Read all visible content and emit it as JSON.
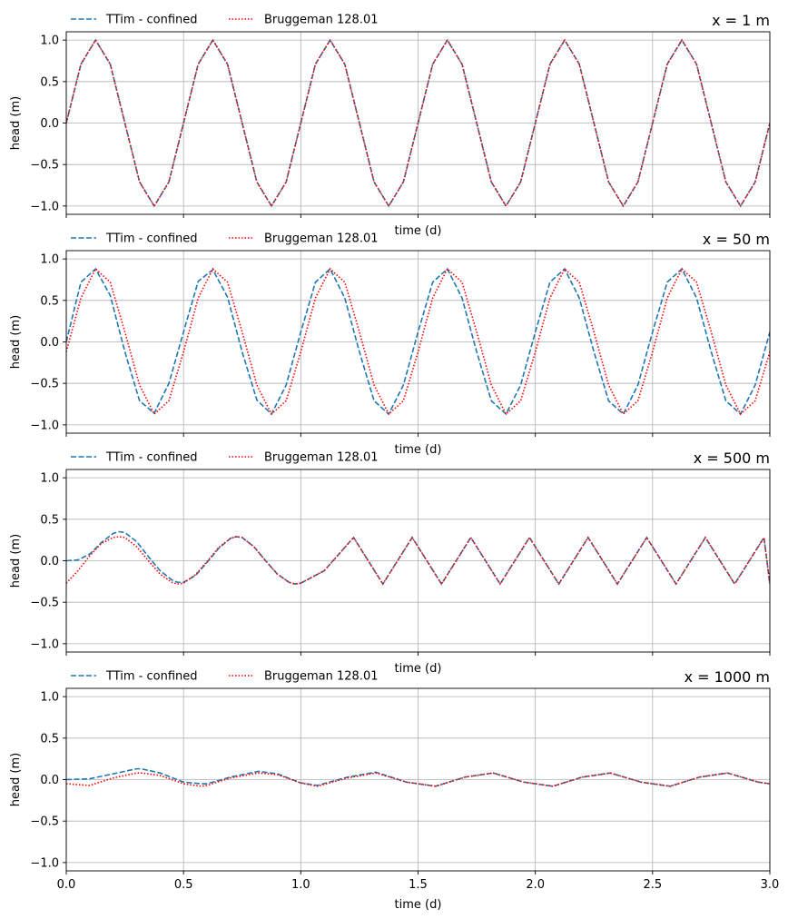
{
  "colors": {
    "series_1": "#1f77b4",
    "series_2": "#ff0000",
    "grid": "#b0b0b0",
    "axis": "#000000"
  },
  "chart_data": [
    {
      "type": "line",
      "title": "x = 1 m",
      "xlabel": "time (d)",
      "ylabel": "head (m)",
      "xlim": [
        0,
        3
      ],
      "ylim": [
        -1.1,
        1.1
      ],
      "yticks": [
        -1.0,
        -0.5,
        0.0,
        0.5,
        1.0
      ],
      "ytick_labels": [
        "−1.0",
        "−0.5",
        "0.0",
        "0.5",
        "1.0"
      ],
      "xticks": [
        0,
        0.5,
        1,
        1.5,
        2,
        2.5,
        3
      ],
      "show_xtick_labels": false,
      "grid": true,
      "legend": "top-left, outside",
      "legend_entries": [
        "TTim - confined",
        "Bruggeman 128.01"
      ],
      "series": [
        {
          "name": "TTim - confined",
          "style": "dashed",
          "x": [
            0,
            0.0625,
            0.125,
            0.1875,
            0.25,
            0.3125,
            0.375,
            0.4375,
            0.5,
            0.5625,
            0.625,
            0.6875,
            0.75,
            0.8125,
            0.875,
            0.9375,
            1.0,
            1.0625,
            1.125,
            1.1875,
            1.25,
            1.3125,
            1.375,
            1.4375,
            1.5,
            1.5625,
            1.625,
            1.6875,
            1.75,
            1.8125,
            1.875,
            1.9375,
            2.0,
            2.0625,
            2.125,
            2.1875,
            2.25,
            2.3125,
            2.375,
            2.4375,
            2.5,
            2.5625,
            2.625,
            2.6875,
            2.75,
            2.8125,
            2.875,
            2.9375,
            3.0
          ],
          "y": [
            0.0,
            0.71,
            1.0,
            0.71,
            0.0,
            -0.71,
            -1.0,
            -0.71,
            0.0,
            0.71,
            1.0,
            0.71,
            0.0,
            -0.71,
            -1.0,
            -0.71,
            0.0,
            0.71,
            1.0,
            0.71,
            0.0,
            -0.71,
            -1.0,
            -0.71,
            0.0,
            0.71,
            1.0,
            0.71,
            0.0,
            -0.71,
            -1.0,
            -0.71,
            0.0,
            0.71,
            1.0,
            0.71,
            0.0,
            -0.71,
            -1.0,
            -0.71,
            0.0,
            0.71,
            1.0,
            0.71,
            0.0,
            -0.71,
            -1.0,
            -0.71,
            0.0
          ]
        },
        {
          "name": "Bruggeman 128.01",
          "style": "dotted",
          "x": [
            0,
            0.0625,
            0.125,
            0.1875,
            0.25,
            0.3125,
            0.375,
            0.4375,
            0.5,
            0.5625,
            0.625,
            0.6875,
            0.75,
            0.8125,
            0.875,
            0.9375,
            1.0,
            1.0625,
            1.125,
            1.1875,
            1.25,
            1.3125,
            1.375,
            1.4375,
            1.5,
            1.5625,
            1.625,
            1.6875,
            1.75,
            1.8125,
            1.875,
            1.9375,
            2.0,
            2.0625,
            2.125,
            2.1875,
            2.25,
            2.3125,
            2.375,
            2.4375,
            2.5,
            2.5625,
            2.625,
            2.6875,
            2.75,
            2.8125,
            2.875,
            2.9375,
            3.0
          ],
          "y": [
            0.0,
            0.71,
            1.0,
            0.71,
            0.0,
            -0.71,
            -1.0,
            -0.71,
            0.0,
            0.71,
            1.0,
            0.71,
            0.0,
            -0.71,
            -1.0,
            -0.71,
            0.0,
            0.71,
            1.0,
            0.71,
            0.0,
            -0.71,
            -1.0,
            -0.71,
            0.0,
            0.71,
            1.0,
            0.71,
            0.0,
            -0.71,
            -1.0,
            -0.71,
            0.0,
            0.71,
            1.0,
            0.71,
            0.0,
            -0.71,
            -1.0,
            -0.71,
            0.0,
            0.71,
            1.0,
            0.71,
            0.0,
            -0.71,
            -1.0,
            -0.71,
            0.0
          ]
        }
      ]
    },
    {
      "type": "line",
      "title": "x = 50 m",
      "xlabel": "time (d)",
      "ylabel": "head (m)",
      "xlim": [
        0,
        3
      ],
      "ylim": [
        -1.1,
        1.1
      ],
      "yticks": [
        -1.0,
        -0.5,
        0.0,
        0.5,
        1.0
      ],
      "ytick_labels": [
        "−1.0",
        "−0.5",
        "0.0",
        "0.5",
        "1.0"
      ],
      "xticks": [
        0,
        0.5,
        1,
        1.5,
        2,
        2.5,
        3
      ],
      "show_xtick_labels": false,
      "grid": true,
      "legend": "top-left, outside",
      "legend_entries": [
        "TTim - confined",
        "Bruggeman 128.01"
      ],
      "series": [
        {
          "name": "TTim - confined",
          "style": "dashed",
          "x": [
            0,
            0.0625,
            0.125,
            0.1875,
            0.25,
            0.3125,
            0.375,
            0.4375,
            0.5,
            0.5625,
            0.625,
            0.6875,
            0.75,
            0.8125,
            0.875,
            0.9375,
            1.0,
            1.0625,
            1.125,
            1.1875,
            1.25,
            1.3125,
            1.375,
            1.4375,
            1.5,
            1.5625,
            1.625,
            1.6875,
            1.75,
            1.8125,
            1.875,
            1.9375,
            2.0,
            2.0625,
            2.125,
            2.1875,
            2.25,
            2.3125,
            2.375,
            2.4375,
            2.5,
            2.5625,
            2.625,
            2.6875,
            2.75,
            2.8125,
            2.875,
            2.9375,
            3.0
          ],
          "y": [
            0.0,
            0.72,
            0.88,
            0.56,
            -0.12,
            -0.71,
            -0.86,
            -0.5,
            0.12,
            0.73,
            0.87,
            0.54,
            -0.12,
            -0.7,
            -0.87,
            -0.52,
            0.12,
            0.72,
            0.88,
            0.53,
            -0.12,
            -0.71,
            -0.87,
            -0.52,
            0.12,
            0.72,
            0.88,
            0.53,
            -0.12,
            -0.71,
            -0.87,
            -0.52,
            0.12,
            0.72,
            0.88,
            0.53,
            -0.12,
            -0.71,
            -0.87,
            -0.52,
            0.12,
            0.72,
            0.88,
            0.53,
            -0.12,
            -0.71,
            -0.87,
            -0.52,
            0.12
          ]
        },
        {
          "name": "Bruggeman 128.01",
          "style": "dotted",
          "x": [
            0,
            0.0625,
            0.125,
            0.1875,
            0.25,
            0.3125,
            0.375,
            0.4375,
            0.5,
            0.5625,
            0.625,
            0.6875,
            0.75,
            0.8125,
            0.875,
            0.9375,
            1.0,
            1.0625,
            1.125,
            1.1875,
            1.25,
            1.3125,
            1.375,
            1.4375,
            1.5,
            1.5625,
            1.625,
            1.6875,
            1.75,
            1.8125,
            1.875,
            1.9375,
            2.0,
            2.0625,
            2.125,
            2.1875,
            2.25,
            2.3125,
            2.375,
            2.4375,
            2.5,
            2.5625,
            2.625,
            2.6875,
            2.75,
            2.8125,
            2.875,
            2.9375,
            3.0
          ],
          "y": [
            -0.12,
            0.53,
            0.88,
            0.72,
            0.12,
            -0.52,
            -0.87,
            -0.71,
            -0.12,
            0.53,
            0.88,
            0.72,
            0.12,
            -0.52,
            -0.87,
            -0.71,
            -0.12,
            0.53,
            0.88,
            0.72,
            0.12,
            -0.52,
            -0.87,
            -0.71,
            -0.12,
            0.53,
            0.88,
            0.72,
            0.12,
            -0.52,
            -0.87,
            -0.71,
            -0.12,
            0.53,
            0.88,
            0.72,
            0.12,
            -0.52,
            -0.87,
            -0.71,
            -0.12,
            0.53,
            0.88,
            0.72,
            0.12,
            -0.52,
            -0.87,
            -0.71,
            -0.12
          ]
        }
      ]
    },
    {
      "type": "line",
      "title": "x = 500 m",
      "xlabel": "time (d)",
      "ylabel": "head (m)",
      "xlim": [
        0,
        3
      ],
      "ylim": [
        -1.1,
        1.1
      ],
      "yticks": [
        -1.0,
        -0.5,
        0.0,
        0.5,
        1.0
      ],
      "ytick_labels": [
        "−1.0",
        "−0.5",
        "0.0",
        "0.5",
        "1.0"
      ],
      "xticks": [
        0,
        0.5,
        1,
        1.5,
        2,
        2.5,
        3
      ],
      "show_xtick_labels": false,
      "grid": true,
      "legend": "top-left, outside",
      "legend_entries": [
        "TTim - confined",
        "Bruggeman 128.01"
      ],
      "series": [
        {
          "name": "TTim - confined",
          "style": "dashed",
          "x": [
            0,
            0.05,
            0.1,
            0.15,
            0.2,
            0.225,
            0.25,
            0.3,
            0.35,
            0.4,
            0.45,
            0.475,
            0.5,
            0.55,
            0.6,
            0.65,
            0.7,
            0.725,
            0.75,
            0.8,
            0.85,
            0.9,
            0.95,
            0.975,
            1.0,
            1.1,
            1.225,
            1.35,
            1.475,
            1.6,
            1.725,
            1.85,
            1.975,
            2.1,
            2.225,
            2.35,
            2.475,
            2.6,
            2.725,
            2.85,
            2.975,
            3.0
          ],
          "y": [
            0.0,
            0.01,
            0.08,
            0.22,
            0.33,
            0.35,
            0.34,
            0.23,
            0.05,
            -0.12,
            -0.23,
            -0.26,
            -0.26,
            -0.18,
            -0.02,
            0.15,
            0.27,
            0.29,
            0.28,
            0.17,
            0.0,
            -0.16,
            -0.26,
            -0.28,
            -0.27,
            -0.12,
            0.28,
            -0.28,
            0.28,
            -0.28,
            0.28,
            -0.28,
            0.28,
            -0.28,
            0.28,
            -0.28,
            0.28,
            -0.28,
            0.28,
            -0.28,
            0.28,
            -0.28
          ]
        },
        {
          "name": "Bruggeman 128.01",
          "style": "dotted",
          "x": [
            0,
            0.05,
            0.1,
            0.15,
            0.2,
            0.225,
            0.25,
            0.3,
            0.35,
            0.4,
            0.45,
            0.475,
            0.5,
            0.55,
            0.6,
            0.65,
            0.7,
            0.725,
            0.75,
            0.8,
            0.85,
            0.9,
            0.95,
            0.975,
            1.0,
            1.1,
            1.225,
            1.35,
            1.475,
            1.6,
            1.725,
            1.85,
            1.975,
            2.1,
            2.225,
            2.35,
            2.475,
            2.6,
            2.725,
            2.85,
            2.975,
            3.0
          ],
          "y": [
            -0.27,
            -0.12,
            0.06,
            0.21,
            0.28,
            0.29,
            0.28,
            0.17,
            0.0,
            -0.16,
            -0.26,
            -0.28,
            -0.27,
            -0.17,
            -0.01,
            0.16,
            0.27,
            0.29,
            0.28,
            0.17,
            0.0,
            -0.16,
            -0.26,
            -0.28,
            -0.27,
            -0.12,
            0.28,
            -0.28,
            0.28,
            -0.28,
            0.28,
            -0.28,
            0.28,
            -0.28,
            0.28,
            -0.28,
            0.28,
            -0.28,
            0.28,
            -0.28,
            0.28,
            -0.28
          ]
        }
      ]
    },
    {
      "type": "line",
      "title": "x = 1000 m",
      "xlabel": "time (d)",
      "ylabel": "head (m)",
      "xlim": [
        0,
        3
      ],
      "ylim": [
        -1.1,
        1.1
      ],
      "yticks": [
        -1.0,
        -0.5,
        0.0,
        0.5,
        1.0
      ],
      "ytick_labels": [
        "−1.0",
        "−0.5",
        "0.0",
        "0.5",
        "1.0"
      ],
      "xticks": [
        0,
        0.5,
        1,
        1.5,
        2,
        2.5,
        3
      ],
      "xtick_labels": [
        "0.0",
        "0.5",
        "1.0",
        "1.5",
        "2.0",
        "2.5",
        "3.0"
      ],
      "show_xtick_labels": true,
      "grid": true,
      "legend": "top-left, outside",
      "legend_entries": [
        "TTim - confined",
        "Bruggeman 128.01"
      ],
      "series": [
        {
          "name": "TTim - confined",
          "style": "dashed",
          "x": [
            0,
            0.1,
            0.2,
            0.3,
            0.32,
            0.4,
            0.5,
            0.575,
            0.6,
            0.7,
            0.82,
            0.9,
            1.0,
            1.07,
            1.2,
            1.32,
            1.45,
            1.575,
            1.7,
            1.82,
            1.95,
            2.075,
            2.2,
            2.32,
            2.45,
            2.575,
            2.7,
            2.82,
            2.95,
            3.0
          ],
          "y": [
            0.0,
            0.01,
            0.07,
            0.13,
            0.13,
            0.08,
            -0.03,
            -0.05,
            -0.05,
            0.03,
            0.1,
            0.07,
            -0.04,
            -0.07,
            0.03,
            0.09,
            -0.03,
            -0.08,
            0.03,
            0.08,
            -0.03,
            -0.08,
            0.03,
            0.08,
            -0.03,
            -0.08,
            0.03,
            0.08,
            -0.03,
            -0.05
          ]
        },
        {
          "name": "Bruggeman 128.01",
          "style": "dotted",
          "x": [
            0,
            0.1,
            0.2,
            0.3,
            0.32,
            0.4,
            0.5,
            0.575,
            0.6,
            0.7,
            0.82,
            0.9,
            1.0,
            1.07,
            1.2,
            1.32,
            1.45,
            1.575,
            1.7,
            1.82,
            1.95,
            2.075,
            2.2,
            2.32,
            2.45,
            2.575,
            2.7,
            2.82,
            2.95,
            3.0
          ],
          "y": [
            -0.05,
            -0.07,
            0.02,
            0.08,
            0.08,
            0.05,
            -0.05,
            -0.08,
            -0.07,
            0.02,
            0.08,
            0.06,
            -0.04,
            -0.08,
            0.02,
            0.08,
            -0.03,
            -0.08,
            0.03,
            0.08,
            -0.03,
            -0.08,
            0.03,
            0.08,
            -0.03,
            -0.08,
            0.03,
            0.08,
            -0.03,
            -0.05
          ]
        }
      ]
    }
  ]
}
